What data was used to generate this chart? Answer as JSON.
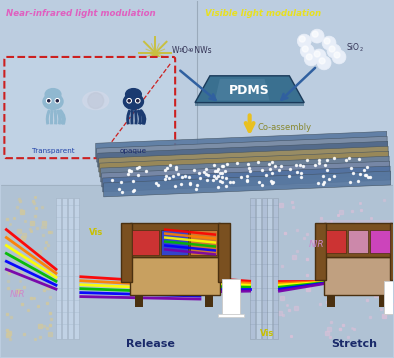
{
  "text_NIR_label": "Near-infrared light modulation",
  "text_NIR_color": "#e060c0",
  "text_Vis_label": "Visible light modulation",
  "text_Vis_color": "#e8e020",
  "text_W18O49": "W",
  "text_W18O49_sub1": "18",
  "text_W18O49_mid": "O",
  "text_W18O49_sub2": "49",
  "text_W18O49_end": " NWs",
  "text_SiO2": "SiO",
  "text_SiO2_sub": "2",
  "text_PDMS": "PDMS",
  "text_CoAssembly": "Co-assembly",
  "text_Transparent": "Transparent",
  "text_opaque": "opaque",
  "text_Release": "Release",
  "text_Stretch": "Stretch",
  "text_Vis_bottom": "Vis",
  "text_NIR_bottom_left": "NIR",
  "text_NIR_bottom_right": "NIR",
  "bg_top": "#bccde0",
  "bg_bottom": "#b0c2d4",
  "pdms_top": "#3a7090",
  "pdms_bottom": "#1a4a6a",
  "pdms_highlight": "#6090b0",
  "arrow_blue": "#3060a0",
  "arrow_yellow": "#e8c020",
  "box_red": "#cc2020",
  "octopus_light": "#90b8d0",
  "octopus_dark": "#1a3a70",
  "star_color": "#c8c040",
  "sio2_color": "#e8eef8",
  "sio2_edge": "#c0ccd8",
  "film_colors": [
    "#5878a0",
    "#8090a8",
    "#506888",
    "#a09060",
    "#988858",
    "#6880a0",
    "#7888a8",
    "#5070a0"
  ],
  "film_top_color": "#c8d0e0",
  "film_dot_color": "#e8eef8",
  "window_fill": "#ccd8e8",
  "window_line": "#aabbcc",
  "window_frame": "#ddeeff",
  "nir_scatter": "#d0d8e8",
  "nir_scatter_left": "#d0c8a0",
  "nir_glow_right": "#d8c0d8",
  "rainbow": [
    "#ff0000",
    "#ff8000",
    "#ffff00",
    "#00bb00",
    "#0000ff",
    "#7700aa"
  ],
  "sofa_base": "#7a5020",
  "sofa_dark": "#4a3010",
  "sofa_seat": "#c8a060",
  "sofa_cushion_left1": "#cc3333",
  "sofa_cushion_left2": "#3344cc",
  "sofa_cushion_left3": "#cc7733",
  "sofa_cushion_right1": "#cc3333",
  "sofa_cushion_right2": "#cc88aa",
  "sofa_cushion_right3": "#cc44bb",
  "label_color": "#1a2a6a",
  "vis_label_yellow": "#c8c000",
  "nir_label_pink": "#cc88cc",
  "ring_color": "#d4c890"
}
